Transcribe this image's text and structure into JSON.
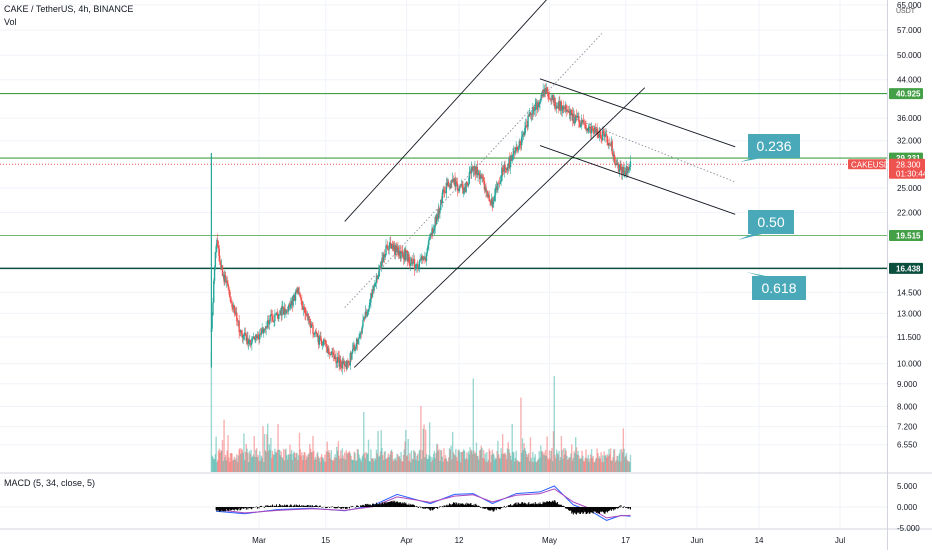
{
  "header": {
    "symbol_title": "CAKE / TetherUS, 4h, BINANCE",
    "volume_label": "Vol",
    "macd_label": "MACD (5, 34, close, 5)",
    "currency": "USDT"
  },
  "colors": {
    "up": "#26a69a",
    "down": "#ef5350",
    "green_line": "#43a047",
    "dark_line": "#0b4f3e",
    "callout": "#4aa9b9",
    "price_tag": "#ef5350",
    "macd_line": "#2962ff",
    "signal_line": "#ab47bc",
    "histogram": "#000000"
  },
  "chart_data": [
    {
      "type": "candlestick",
      "title": "CAKE / TetherUS, 4h, BINANCE",
      "scale": "log",
      "ylim": [
        5.8,
        66
      ],
      "y_ticks": [
        "65.000",
        "57.000",
        "50.000",
        "44.000",
        "40.925",
        "36.000",
        "32.000",
        "29.231",
        "28.300",
        "25.000",
        "22.000",
        "19.515",
        "16.438",
        "14.500",
        "13.000",
        "11.500",
        "10.000",
        "9.000",
        "8.000",
        "7.200",
        "6.550"
      ],
      "x_labels": [
        "Mar",
        "15",
        "Apr",
        "12",
        "May",
        "17",
        "Jun",
        "14",
        "Jul"
      ],
      "x_label_dates": [
        "2021-03-01",
        "2021-03-15",
        "2021-04-01",
        "2021-04-12",
        "2021-05-01",
        "2021-05-17",
        "2021-06-01",
        "2021-06-14",
        "2021-07-01"
      ],
      "price_path": {
        "dates": [
          "2021-02-19",
          "2021-02-20",
          "2021-02-21",
          "2021-02-23",
          "2021-02-25",
          "2021-02-27",
          "2021-03-01",
          "2021-03-03",
          "2021-03-05",
          "2021-03-07",
          "2021-03-09",
          "2021-03-11",
          "2021-03-13",
          "2021-03-15",
          "2021-03-17",
          "2021-03-19",
          "2021-03-20",
          "2021-03-22",
          "2021-03-24",
          "2021-03-26",
          "2021-03-28",
          "2021-03-30",
          "2021-04-01",
          "2021-04-03",
          "2021-04-05",
          "2021-04-07",
          "2021-04-09",
          "2021-04-11",
          "2021-04-13",
          "2021-04-15",
          "2021-04-17",
          "2021-04-19",
          "2021-04-21",
          "2021-04-23",
          "2021-04-25",
          "2021-04-27",
          "2021-04-28",
          "2021-04-30",
          "2021-05-02",
          "2021-05-04",
          "2021-05-06",
          "2021-05-08",
          "2021-05-10",
          "2021-05-12",
          "2021-05-14",
          "2021-05-15",
          "2021-05-17",
          "2021-05-18"
        ],
        "closes": [
          12.0,
          19.0,
          16.5,
          14.0,
          12.0,
          11.0,
          11.5,
          12.5,
          13.0,
          13.2,
          14.5,
          12.8,
          11.5,
          11.0,
          10.2,
          9.8,
          10.2,
          11.5,
          13.5,
          16.0,
          18.5,
          18.0,
          17.5,
          16.5,
          17.5,
          21.0,
          25.0,
          26.0,
          24.5,
          28.0,
          26.0,
          23.0,
          27.0,
          29.0,
          32.0,
          37.0,
          38.0,
          42.0,
          39.0,
          38.0,
          36.0,
          35.0,
          33.5,
          33.0,
          31.0,
          28.0,
          27.0,
          28.3
        ]
      },
      "volume_spikes": [
        [
          "2021-02-19",
          1.0
        ],
        [
          "2021-03-05",
          0.4
        ],
        [
          "2021-03-23",
          0.5
        ],
        [
          "2021-04-04",
          0.55
        ],
        [
          "2021-04-15",
          0.78
        ],
        [
          "2021-04-25",
          0.62
        ],
        [
          "2021-05-02",
          0.8
        ]
      ],
      "horizontal_levels": [
        {
          "price": 40.925,
          "label": "40.925",
          "style": "solid",
          "color": "#43a047"
        },
        {
          "price": 29.231,
          "label": "29.231",
          "style": "solid",
          "color": "#43a047"
        },
        {
          "price": 28.3,
          "label": "28.300",
          "style": "dotted",
          "color": "#ef5350"
        },
        {
          "price": 19.515,
          "label": "19.515",
          "style": "solid-thin",
          "color": "#43a047"
        },
        {
          "price": 16.438,
          "label": "16.438",
          "style": "solid-thick",
          "color": "#0b4f3e"
        }
      ],
      "current_price": {
        "symbol": "CAKEUSDT",
        "price": "28.300",
        "countdown": "01:30:44"
      },
      "fib_callouts": [
        "0.236",
        "0.50",
        "0.618"
      ]
    },
    {
      "type": "line",
      "title": "MACD (5, 34, close, 5)",
      "ylim": [
        -5,
        6
      ],
      "y_ticks": [
        "5.000",
        "0.000",
        "-5.000"
      ],
      "series": [
        {
          "name": "MACD",
          "dates": [
            "2021-02-20",
            "2021-02-26",
            "2021-03-05",
            "2021-03-12",
            "2021-03-19",
            "2021-03-25",
            "2021-03-30",
            "2021-04-06",
            "2021-04-11",
            "2021-04-15",
            "2021-04-19",
            "2021-04-24",
            "2021-04-29",
            "2021-05-02",
            "2021-05-06",
            "2021-05-10",
            "2021-05-13",
            "2021-05-16",
            "2021-05-18"
          ],
          "values": [
            -1.0,
            -1.6,
            -0.6,
            -0.3,
            -0.9,
            0.4,
            3.0,
            0.8,
            3.0,
            3.2,
            0.8,
            3.2,
            3.6,
            5.0,
            0.5,
            -1.2,
            -3.2,
            -2.0,
            -2.2
          ]
        },
        {
          "name": "Signal",
          "dates": [
            "2021-02-20",
            "2021-02-26",
            "2021-03-05",
            "2021-03-12",
            "2021-03-19",
            "2021-03-25",
            "2021-03-30",
            "2021-04-06",
            "2021-04-11",
            "2021-04-15",
            "2021-04-19",
            "2021-04-24",
            "2021-04-29",
            "2021-05-02",
            "2021-05-06",
            "2021-05-10",
            "2021-05-13",
            "2021-05-16",
            "2021-05-18"
          ],
          "values": [
            -0.6,
            -1.4,
            -0.8,
            -0.4,
            -0.8,
            0.1,
            2.4,
            1.1,
            2.6,
            2.9,
            1.2,
            2.8,
            3.2,
            4.3,
            1.2,
            -0.6,
            -2.6,
            -2.1,
            -2.0
          ]
        }
      ]
    }
  ]
}
